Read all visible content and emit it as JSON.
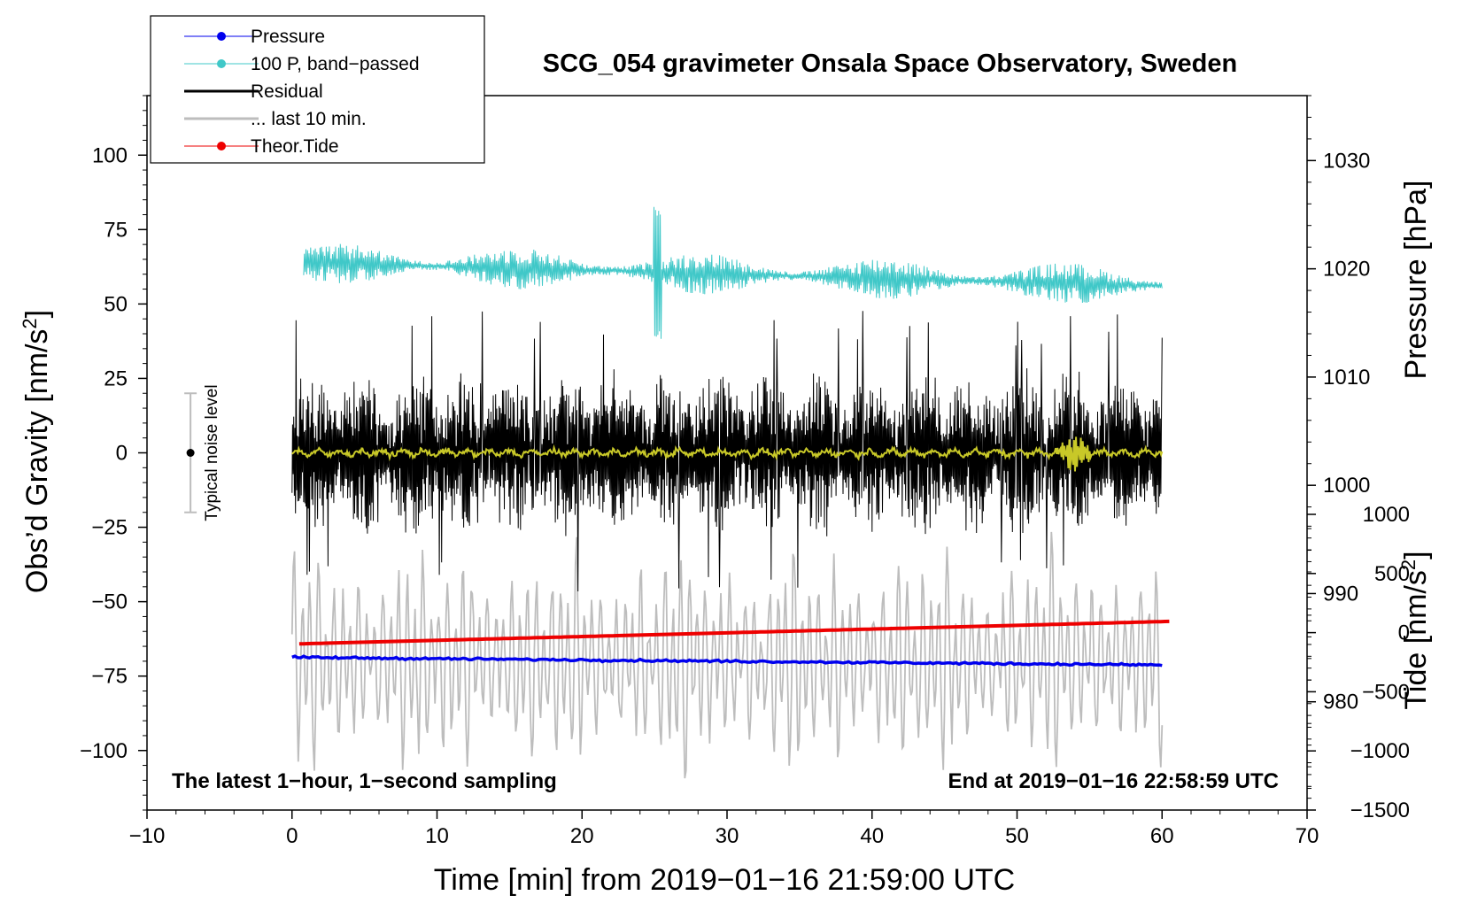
{
  "chart_data": {
    "type": "line",
    "title": "SCG_054 gravimeter Onsala Space Observatory, Sweden",
    "xlabel": "Time [min] from 2019−01−16 21:59:00 UTC",
    "ylabel_left": "Obs’d Gravity [nm/s",
    "ylabel_left_sup": "2",
    "ylabel_left_close": "]",
    "ylabel_right_pressure": "Pressure [hPa]",
    "ylabel_right_tide": "Tide [nm/s",
    "ylabel_right_tide_sup": "2",
    "ylabel_right_tide_close": "]",
    "xlim": [
      -10,
      70
    ],
    "ylim_left": [
      -120,
      120
    ],
    "x_ticks": [
      {
        "value": -10,
        "label": "−10"
      },
      {
        "value": 0,
        "label": "0"
      },
      {
        "value": 10,
        "label": "10"
      },
      {
        "value": 20,
        "label": "20"
      },
      {
        "value": 30,
        "label": "30"
      },
      {
        "value": 40,
        "label": "40"
      },
      {
        "value": 50,
        "label": "50"
      },
      {
        "value": 60,
        "label": "60"
      },
      {
        "value": 70,
        "label": "70"
      }
    ],
    "y_ticks_left": [
      {
        "value": 100,
        "label": "100"
      },
      {
        "value": 75,
        "label": "75"
      },
      {
        "value": 50,
        "label": "50"
      },
      {
        "value": 25,
        "label": "25"
      },
      {
        "value": 0,
        "label": "0"
      },
      {
        "value": -25,
        "label": "−25"
      },
      {
        "value": -50,
        "label": "−50"
      },
      {
        "value": -75,
        "label": "−75"
      },
      {
        "value": -100,
        "label": "−100"
      }
    ],
    "pressure_axis": {
      "range": [
        970,
        1036
      ],
      "ticks": [
        {
          "value": 1030,
          "label": "1030"
        },
        {
          "value": 1020,
          "label": "1020"
        },
        {
          "value": 1010,
          "label": "1010"
        },
        {
          "value": 1000,
          "label": "1000"
        },
        {
          "value": 990,
          "label": "990"
        },
        {
          "value": 980,
          "label": "980"
        }
      ]
    },
    "tide_axis": {
      "range": [
        -1500,
        1000
      ],
      "ticks": [
        {
          "value": 1000,
          "label": "1000"
        },
        {
          "value": 500,
          "label": "500"
        },
        {
          "value": 0,
          "label": "0"
        },
        {
          "value": -500,
          "label": "−500"
        },
        {
          "value": -1000,
          "label": "−1000"
        },
        {
          "value": -1500,
          "label": "−1500"
        }
      ]
    },
    "series": [
      {
        "name": "Pressure",
        "color": "#0000ee",
        "axis": "pressure",
        "x_range": [
          0,
          60
        ],
        "start": 984.1,
        "end": 983.4
      },
      {
        "name": "100 P, band−passed",
        "color": "#40c8c8",
        "axis": "left",
        "x_range": [
          0.8,
          60
        ],
        "baseline_start": 64,
        "baseline_end": 56,
        "amplitude": 7
      },
      {
        "name": "Residual",
        "color": "#000000",
        "axis": "left",
        "x_range": [
          0,
          60
        ],
        "typical_amplitude": 20,
        "max_amplitude": 48
      },
      {
        "name": "... last 10 min.",
        "color": "#bdbdbd",
        "axis": "left",
        "x_range": [
          0,
          60
        ],
        "center": -70,
        "amplitude": 35
      },
      {
        "name": "Theor.Tide",
        "color": "#ee0000",
        "axis": "tide",
        "x_range": [
          0.5,
          60.5
        ],
        "start": -95,
        "end": 95
      },
      {
        "name": "Residual (smoothed)",
        "color": "#c8c828",
        "axis": "left",
        "x_range": [
          0,
          60
        ],
        "level": 0,
        "burst_at_min": 54
      }
    ],
    "annotations": {
      "noise_label": "Typical noise level",
      "noise_range": [
        -20,
        20
      ],
      "noise_x": -7,
      "bottom_left": "The latest 1−hour, 1−second sampling",
      "bottom_right": "End at 2019−01−16 22:58:59 UTC"
    },
    "legend": {
      "placement": "top-left",
      "entries": [
        {
          "label": "Pressure",
          "color": "#0000ee",
          "marker": true,
          "thick": false
        },
        {
          "label": "100 P, band−passed",
          "color": "#40c8c8",
          "marker": true,
          "thick": false
        },
        {
          "label": "Residual",
          "color": "#000000",
          "marker": false,
          "thick": true
        },
        {
          "label": "... last 10 min.",
          "color": "#bdbdbd",
          "marker": false,
          "thick": true
        },
        {
          "label": "Theor.Tide",
          "color": "#ee0000",
          "marker": true,
          "thick": false
        }
      ]
    }
  }
}
